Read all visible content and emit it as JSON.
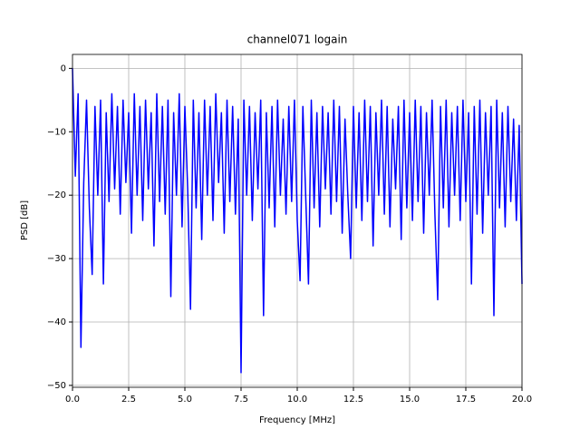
{
  "chart_data": {
    "type": "line",
    "title": "channel071 logain",
    "xlabel": "Frequency [MHz]",
    "ylabel": "PSD [dB]",
    "xlim": [
      0,
      20
    ],
    "ylim": [
      -50.3,
      2.2
    ],
    "grid": true,
    "xticks": [
      {
        "value": 0,
        "label": "0.0"
      },
      {
        "value": 2.5,
        "label": "2.5"
      },
      {
        "value": 5,
        "label": "5.0"
      },
      {
        "value": 7.5,
        "label": "7.5"
      },
      {
        "value": 10,
        "label": "10.0"
      },
      {
        "value": 12.5,
        "label": "12.5"
      },
      {
        "value": 15,
        "label": "15.0"
      },
      {
        "value": 17.5,
        "label": "17.5"
      },
      {
        "value": 20,
        "label": "20.0"
      }
    ],
    "yticks": [
      0,
      {
        "value": -10,
        "label": "−10"
      },
      {
        "value": -20,
        "label": "−20"
      },
      {
        "value": -30,
        "label": "−30"
      },
      {
        "value": -40,
        "label": "−40"
      },
      {
        "value": -50,
        "label": "−50"
      }
    ],
    "x": [
      0,
      0.125,
      0.25,
      0.375,
      0.5,
      0.625,
      0.75,
      0.875,
      1,
      1.125,
      1.25,
      1.375,
      1.5,
      1.625,
      1.75,
      1.875,
      2,
      2.125,
      2.25,
      2.375,
      2.5,
      2.625,
      2.75,
      2.875,
      3,
      3.125,
      3.25,
      3.375,
      3.5,
      3.625,
      3.75,
      3.875,
      4,
      4.125,
      4.25,
      4.375,
      4.5,
      4.625,
      4.75,
      4.875,
      5,
      5.125,
      5.25,
      5.375,
      5.5,
      5.625,
      5.75,
      5.875,
      6,
      6.125,
      6.25,
      6.375,
      6.5,
      6.625,
      6.75,
      6.875,
      7,
      7.125,
      7.25,
      7.375,
      7.5,
      7.625,
      7.75,
      7.875,
      8,
      8.125,
      8.25,
      8.375,
      8.5,
      8.625,
      8.75,
      8.875,
      9,
      9.125,
      9.25,
      9.375,
      9.5,
      9.625,
      9.75,
      9.875,
      10,
      10.125,
      10.25,
      10.375,
      10.5,
      10.625,
      10.75,
      10.875,
      11,
      11.125,
      11.25,
      11.375,
      11.5,
      11.625,
      11.75,
      11.875,
      12,
      12.125,
      12.25,
      12.375,
      12.5,
      12.625,
      12.75,
      12.875,
      13,
      13.125,
      13.25,
      13.375,
      13.5,
      13.625,
      13.75,
      13.875,
      14,
      14.125,
      14.25,
      14.375,
      14.5,
      14.625,
      14.75,
      14.875,
      15,
      15.125,
      15.25,
      15.375,
      15.5,
      15.625,
      15.75,
      15.875,
      16,
      16.125,
      16.25,
      16.375,
      16.5,
      16.625,
      16.75,
      16.875,
      17,
      17.125,
      17.25,
      17.375,
      17.5,
      17.625,
      17.75,
      17.875,
      18,
      18.125,
      18.25,
      18.375,
      18.5,
      18.625,
      18.75,
      18.875,
      19,
      19.125,
      19.25,
      19.375,
      19.5,
      19.625,
      19.75,
      19.875,
      20
    ],
    "series": [
      {
        "name": "PSD",
        "color": "#0000ff",
        "values": [
          0,
          -17,
          -4,
          -44,
          -18,
          -5,
          -22,
          -32.5,
          -6,
          -20,
          -5,
          -34,
          -7,
          -21,
          -4,
          -19,
          -6,
          -23,
          -5,
          -18,
          -7,
          -26,
          -4,
          -20,
          -6,
          -24,
          -5,
          -19,
          -7,
          -28,
          -4,
          -21,
          -6,
          -23,
          -5,
          -36,
          -7,
          -20,
          -4,
          -25,
          -6,
          -19,
          -38,
          -5,
          -22,
          -7,
          -27,
          -5,
          -20,
          -6,
          -24,
          -4,
          -18,
          -7,
          -26,
          -5,
          -21,
          -6,
          -23,
          -8,
          -48,
          -5,
          -20,
          -6,
          -24,
          -7,
          -19,
          -5,
          -39,
          -7,
          -22,
          -6,
          -25,
          -5,
          -20,
          -8,
          -23,
          -6,
          -21,
          -5,
          -24,
          -33.5,
          -6,
          -20,
          -34,
          -5,
          -22,
          -7,
          -25,
          -6,
          -19,
          -7,
          -23,
          -5,
          -21,
          -6,
          -26,
          -8,
          -20,
          -30,
          -6,
          -22,
          -7,
          -24,
          -5,
          -21,
          -6,
          -28,
          -7,
          -20,
          -5,
          -23,
          -6,
          -25,
          -8,
          -19,
          -6,
          -27,
          -5,
          -22,
          -7,
          -24,
          -5,
          -21,
          -6,
          -26,
          -7,
          -20,
          -5,
          -23,
          -36.5,
          -6,
          -22,
          -5,
          -25,
          -7,
          -20,
          -6,
          -24,
          -5,
          -21,
          -7,
          -34,
          -6,
          -23,
          -5,
          -26,
          -7,
          -20,
          -6,
          -39,
          -5,
          -22,
          -7,
          -25,
          -6,
          -21,
          -8,
          -24,
          -9,
          -34
        ]
      }
    ]
  }
}
